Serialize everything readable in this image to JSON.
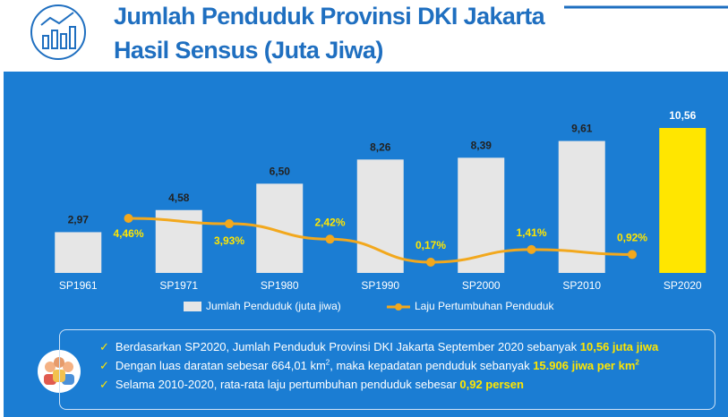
{
  "chart_data": {
    "type": "bar-line",
    "title": "Jumlah Penduduk Provinsi DKI Jakarta",
    "subtitle": "Hasil Sensus (Juta Jiwa)",
    "categories": [
      "SP1961",
      "SP1971",
      "SP1980",
      "SP1990",
      "SP2000",
      "SP2010",
      "SP2020"
    ],
    "series": [
      {
        "name": "Jumlah Penduduk (juta jiwa)",
        "type": "bar",
        "color": "#e6e6e6",
        "highlight_color": "#ffe600",
        "values": [
          2.97,
          4.58,
          6.5,
          8.26,
          8.39,
          9.61,
          10.56
        ],
        "value_labels": [
          "2,97",
          "4,58",
          "6,50",
          "8,26",
          "8,39",
          "9,61",
          "10,56"
        ]
      },
      {
        "name": "Laju Pertumbuhan Penduduk",
        "type": "line",
        "color": "#f2a81d",
        "values": [
          null,
          4.46,
          3.93,
          2.42,
          0.17,
          1.41,
          0.92
        ],
        "value_labels": [
          null,
          "4,46%",
          "3,93%",
          "2,42%",
          "0,17%",
          "1,41%",
          "0,92%"
        ]
      }
    ]
  },
  "notes": [
    [
      {
        "text": "Berdasarkan SP2020, Jumlah Penduduk Provinsi DKI Jakarta September 2020 sebanyak "
      },
      {
        "text": "10,56 juta jiwa",
        "highlight": true
      }
    ],
    [
      {
        "text": "Dengan luas daratan sebesar 664,01 km"
      },
      {
        "text": "2",
        "sup": true
      },
      {
        "text": ", maka kepadatan penduduk sebanyak "
      },
      {
        "text": "15.906 jiwa per km",
        "highlight": true
      },
      {
        "text": "2",
        "sup": true,
        "highlight": true
      }
    ],
    [
      {
        "text": "Selama 2010-2020, rata-rata laju pertumbuhan penduduk sebesar "
      },
      {
        "text": "0,92 persen",
        "highlight": true
      }
    ]
  ]
}
